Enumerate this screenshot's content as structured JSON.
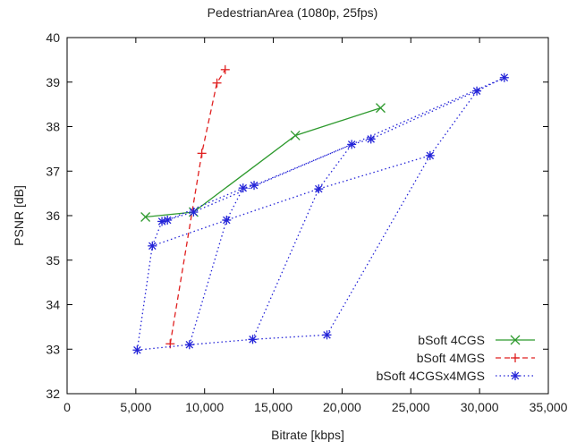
{
  "chart_data": {
    "type": "line",
    "title": "PedestrianArea (1080p, 25fps)",
    "xlabel": "Bitrate [kbps]",
    "ylabel": "PSNR [dB]",
    "xlim": [
      0,
      35000
    ],
    "ylim": [
      32,
      40
    ],
    "xticks": [
      0,
      5000,
      10000,
      15000,
      20000,
      25000,
      30000,
      35000
    ],
    "xtick_labels": [
      "0",
      "5,000",
      "10,000",
      "15,000",
      "20,000",
      "25,000",
      "30,000",
      "35,000"
    ],
    "yticks": [
      32,
      33,
      34,
      35,
      36,
      37,
      38,
      39,
      40
    ],
    "ytick_labels": [
      "32",
      "33",
      "34",
      "35",
      "36",
      "37",
      "38",
      "39",
      "40"
    ],
    "grid": false,
    "legend_position": "bottom-right",
    "series": [
      {
        "name": "bSoft 4CGS",
        "color": "#2e9a2e",
        "dash": "solid",
        "marker": "x",
        "points": [
          [
            5700,
            35.97
          ],
          [
            9200,
            36.08
          ],
          [
            16600,
            37.8
          ],
          [
            22800,
            38.42
          ]
        ]
      },
      {
        "name": "bSoft 4MGS",
        "color": "#e02020",
        "dash": "dashed",
        "marker": "+",
        "points": [
          [
            7500,
            33.12
          ],
          [
            9800,
            37.4
          ],
          [
            10900,
            38.98
          ],
          [
            11500,
            39.28
          ]
        ]
      },
      {
        "name": "bSoft 4CGSx4MGS",
        "color": "#2424d8",
        "dash": "dotted",
        "marker": "star",
        "points": [
          [
            6200,
            35.32
          ],
          [
            6900,
            35.87
          ],
          [
            7300,
            35.9
          ],
          [
            9200,
            36.08
          ],
          [
            12800,
            36.62
          ],
          [
            13600,
            36.68
          ],
          [
            20700,
            37.6
          ],
          [
            22100,
            37.72
          ],
          [
            29800,
            38.8
          ],
          [
            31800,
            39.1
          ],
          [
            5100,
            32.98
          ],
          [
            8900,
            33.1
          ],
          [
            13500,
            33.22
          ],
          [
            18900,
            33.32
          ],
          [
            11600,
            35.9
          ],
          [
            18300,
            36.6
          ],
          [
            26400,
            37.35
          ]
        ],
        "segments": [
          [
            [
              5100,
              32.98
            ],
            [
              8900,
              33.1
            ],
            [
              13500,
              33.22
            ],
            [
              18900,
              33.32
            ]
          ],
          [
            [
              5100,
              32.98
            ],
            [
              6200,
              35.32
            ],
            [
              11600,
              35.9
            ],
            [
              18300,
              36.6
            ],
            [
              26400,
              37.35
            ],
            [
              29800,
              38.8
            ],
            [
              31800,
              39.1
            ]
          ],
          [
            [
              6200,
              35.32
            ],
            [
              6900,
              35.87
            ],
            [
              7300,
              35.9
            ],
            [
              12800,
              36.62
            ],
            [
              13600,
              36.68
            ],
            [
              20700,
              37.6
            ],
            [
              22100,
              37.72
            ],
            [
              29800,
              38.8
            ]
          ],
          [
            [
              6900,
              35.87
            ],
            [
              9200,
              36.08
            ],
            [
              20700,
              37.6
            ],
            [
              31800,
              39.1
            ]
          ],
          [
            [
              8900,
              33.1
            ],
            [
              11600,
              35.9
            ],
            [
              12800,
              36.62
            ]
          ],
          [
            [
              13500,
              33.22
            ],
            [
              18300,
              36.6
            ],
            [
              20700,
              37.6
            ]
          ],
          [
            [
              18900,
              33.32
            ],
            [
              26400,
              37.35
            ]
          ]
        ]
      }
    ]
  }
}
